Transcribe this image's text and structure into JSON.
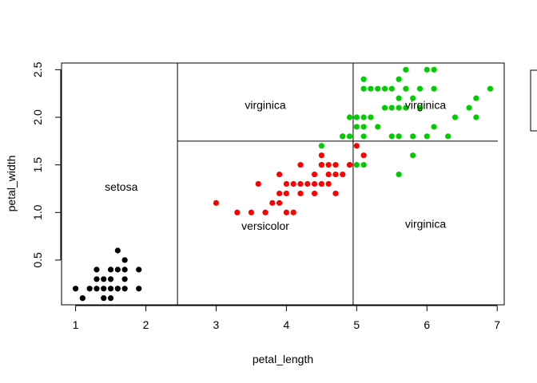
{
  "chart_data": {
    "type": "scatter",
    "title": "",
    "xlabel": "petal_length",
    "ylabel": "petal_width",
    "xlim": [
      0.8,
      7.1
    ],
    "ylim": [
      0.03,
      2.57
    ],
    "x_ticks": [
      {
        "value": 1,
        "label": "1"
      },
      {
        "value": 2,
        "label": "2"
      },
      {
        "value": 3,
        "label": "3"
      },
      {
        "value": 4,
        "label": "4"
      },
      {
        "value": 5,
        "label": "5"
      },
      {
        "value": 6,
        "label": "6"
      },
      {
        "value": 7,
        "label": "7"
      }
    ],
    "y_ticks": [
      {
        "value": 0.5,
        "label": "0.5"
      },
      {
        "value": 1.0,
        "label": "1.0"
      },
      {
        "value": 1.5,
        "label": "1.5"
      },
      {
        "value": 2.0,
        "label": "2.0"
      },
      {
        "value": 2.5,
        "label": "2.5"
      }
    ],
    "grid": false,
    "colors": {
      "setosa": "#000000",
      "versicolor": "#ff0000",
      "virginica": "#00cd00"
    },
    "series": [
      {
        "color": "#000000",
        "points": [
          [
            1.0,
            0.2
          ],
          [
            1.1,
            0.1
          ],
          [
            1.2,
            0.2
          ],
          [
            1.3,
            0.2
          ],
          [
            1.3,
            0.3
          ],
          [
            1.3,
            0.4
          ],
          [
            1.4,
            0.1
          ],
          [
            1.4,
            0.2
          ],
          [
            1.4,
            0.3
          ],
          [
            1.5,
            0.1
          ],
          [
            1.5,
            0.2
          ],
          [
            1.5,
            0.3
          ],
          [
            1.5,
            0.4
          ],
          [
            1.6,
            0.2
          ],
          [
            1.6,
            0.4
          ],
          [
            1.6,
            0.6
          ],
          [
            1.7,
            0.2
          ],
          [
            1.7,
            0.3
          ],
          [
            1.7,
            0.4
          ],
          [
            1.7,
            0.5
          ],
          [
            1.9,
            0.2
          ],
          [
            1.9,
            0.4
          ]
        ]
      },
      {
        "color": "#ff0000",
        "points": [
          [
            3.0,
            1.1
          ],
          [
            3.3,
            1.0
          ],
          [
            3.5,
            1.0
          ],
          [
            3.6,
            1.3
          ],
          [
            3.7,
            1.0
          ],
          [
            3.8,
            1.1
          ],
          [
            3.9,
            1.1
          ],
          [
            3.9,
            1.2
          ],
          [
            3.9,
            1.4
          ],
          [
            4.0,
            1.0
          ],
          [
            4.0,
            1.2
          ],
          [
            4.0,
            1.3
          ],
          [
            4.1,
            1.0
          ],
          [
            4.1,
            1.3
          ],
          [
            4.2,
            1.2
          ],
          [
            4.2,
            1.3
          ],
          [
            4.2,
            1.5
          ],
          [
            4.3,
            1.3
          ],
          [
            4.4,
            1.2
          ],
          [
            4.4,
            1.3
          ],
          [
            4.4,
            1.4
          ],
          [
            4.5,
            1.3
          ],
          [
            4.5,
            1.5
          ],
          [
            4.5,
            1.6
          ],
          [
            4.6,
            1.3
          ],
          [
            4.6,
            1.4
          ],
          [
            4.6,
            1.5
          ],
          [
            4.7,
            1.2
          ],
          [
            4.7,
            1.4
          ],
          [
            4.7,
            1.5
          ],
          [
            4.8,
            1.4
          ],
          [
            4.9,
            1.5
          ],
          [
            5.0,
            1.7
          ],
          [
            5.1,
            1.6
          ],
          [
            4.8,
            1.8
          ],
          [
            4.9,
            1.5
          ],
          [
            4.5,
            1.5
          ]
        ]
      },
      {
        "color": "#00cd00",
        "points": [
          [
            4.5,
            1.7
          ],
          [
            4.8,
            1.8
          ],
          [
            4.9,
            1.8
          ],
          [
            4.9,
            2.0
          ],
          [
            5.0,
            1.5
          ],
          [
            5.0,
            1.9
          ],
          [
            5.0,
            2.0
          ],
          [
            5.1,
            1.5
          ],
          [
            5.1,
            1.8
          ],
          [
            5.1,
            1.9
          ],
          [
            5.1,
            2.0
          ],
          [
            5.1,
            2.3
          ],
          [
            5.1,
            2.4
          ],
          [
            5.2,
            2.0
          ],
          [
            5.2,
            2.3
          ],
          [
            5.3,
            1.9
          ],
          [
            5.3,
            2.3
          ],
          [
            5.4,
            2.1
          ],
          [
            5.4,
            2.3
          ],
          [
            5.5,
            2.1
          ],
          [
            5.5,
            1.8
          ],
          [
            5.6,
            1.8
          ],
          [
            5.6,
            2.1
          ],
          [
            5.6,
            2.2
          ],
          [
            5.6,
            2.4
          ],
          [
            5.6,
            1.4
          ],
          [
            5.7,
            2.1
          ],
          [
            5.7,
            2.3
          ],
          [
            5.7,
            2.5
          ],
          [
            5.8,
            1.6
          ],
          [
            5.8,
            1.8
          ],
          [
            5.8,
            2.2
          ],
          [
            5.9,
            2.3
          ],
          [
            5.9,
            2.1
          ],
          [
            6.0,
            1.8
          ],
          [
            6.0,
            2.5
          ],
          [
            6.1,
            1.9
          ],
          [
            6.1,
            2.3
          ],
          [
            6.1,
            2.5
          ],
          [
            6.3,
            1.8
          ],
          [
            6.4,
            2.0
          ],
          [
            6.6,
            2.1
          ],
          [
            6.7,
            2.0
          ],
          [
            6.7,
            2.2
          ],
          [
            6.9,
            2.3
          ],
          [
            5.5,
            2.3
          ],
          [
            5.0,
            2.0
          ]
        ]
      }
    ],
    "splits": [
      {
        "kind": "vertical",
        "x": 2.45,
        "y_range": [
          0.03,
          2.57
        ]
      },
      {
        "kind": "horizontal",
        "y": 1.75,
        "x_range": [
          2.45,
          7.1
        ]
      },
      {
        "kind": "vertical",
        "x": 4.95,
        "y_range": [
          0.03,
          2.57
        ]
      }
    ],
    "region_labels": [
      {
        "text": "setosa",
        "x": 1.65,
        "y": 1.27
      },
      {
        "text": "virginica",
        "x": 3.7,
        "y": 2.13
      },
      {
        "text": "virginica",
        "x": 5.98,
        "y": 2.13
      },
      {
        "text": "versicolor",
        "x": 3.7,
        "y": 0.86
      },
      {
        "text": "virginica",
        "x": 5.98,
        "y": 0.88
      }
    ],
    "legend": {
      "placement": "right-clipped",
      "entries": []
    }
  }
}
